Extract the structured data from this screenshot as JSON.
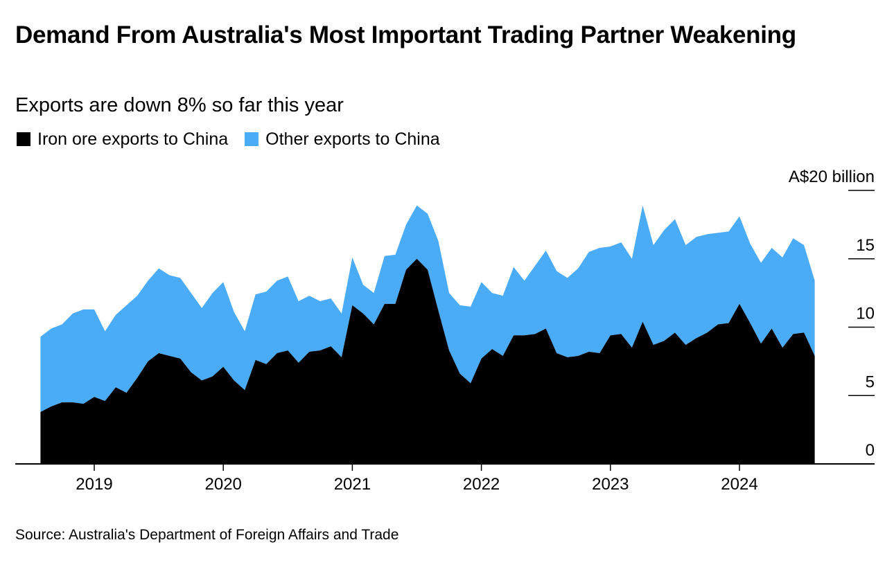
{
  "title": "Demand From Australia's Most Important Trading Partner Weakening",
  "subtitle": "Exports are down 8% so far this year",
  "source": "Source: Australia's Department of Foreign Affairs and Trade",
  "colors": {
    "iron_ore": "#000000",
    "other": "#4aabf7"
  },
  "chart_data": {
    "type": "area",
    "stacked": true,
    "title": "Demand From Australia's Most Important Trading Partner Weakening",
    "subtitle": "Exports are down 8% so far this year",
    "unit_label": "A$20 billion",
    "y_ticks": [
      "0",
      "5",
      "10",
      "15",
      "A$20 billion"
    ],
    "y_tick_values": [
      0,
      5,
      10,
      15,
      20
    ],
    "ylim": [
      0,
      20
    ],
    "x_ticks": [
      "2019",
      "2020",
      "2021",
      "2022",
      "2023",
      "2024"
    ],
    "x_tick_values": [
      "2019-01",
      "2020-01",
      "2021-01",
      "2022-01",
      "2023-01",
      "2024-01"
    ],
    "x_range": [
      "2018-07",
      "2024-07"
    ],
    "grid": false,
    "legend_position": "top-left",
    "x": [
      "2018-08",
      "2018-09",
      "2018-10",
      "2018-11",
      "2018-12",
      "2019-01",
      "2019-02",
      "2019-03",
      "2019-04",
      "2019-05",
      "2019-06",
      "2019-07",
      "2019-08",
      "2019-09",
      "2019-10",
      "2019-11",
      "2019-12",
      "2020-01",
      "2020-02",
      "2020-03",
      "2020-04",
      "2020-05",
      "2020-06",
      "2020-07",
      "2020-08",
      "2020-09",
      "2020-10",
      "2020-11",
      "2020-12",
      "2021-01",
      "2021-02",
      "2021-03",
      "2021-04",
      "2021-05",
      "2021-06",
      "2021-07",
      "2021-08",
      "2021-09",
      "2021-10",
      "2021-11",
      "2021-12",
      "2022-01",
      "2022-02",
      "2022-03",
      "2022-04",
      "2022-05",
      "2022-06",
      "2022-07",
      "2022-08",
      "2022-09",
      "2022-10",
      "2022-11",
      "2022-12",
      "2023-01",
      "2023-02",
      "2023-03",
      "2023-04",
      "2023-05",
      "2023-06",
      "2023-07",
      "2023-08",
      "2023-09",
      "2023-10",
      "2023-11",
      "2023-12",
      "2024-01",
      "2024-02",
      "2024-03",
      "2024-04",
      "2024-05",
      "2024-06",
      "2024-07",
      "2024-08"
    ],
    "series": [
      {
        "name": "Iron ore exports to China",
        "values": [
          3.8,
          4.2,
          4.5,
          4.5,
          4.4,
          4.9,
          4.6,
          5.6,
          5.2,
          6.3,
          7.5,
          8.1,
          7.9,
          7.7,
          6.7,
          6.1,
          6.4,
          7.1,
          6.1,
          5.4,
          7.6,
          7.3,
          8.1,
          8.3,
          7.4,
          8.2,
          8.3,
          8.6,
          7.8,
          11.6,
          11.0,
          10.2,
          11.7,
          11.7,
          14.2,
          15.0,
          14.2,
          11.2,
          8.3,
          6.6,
          5.9,
          7.7,
          8.4,
          7.9,
          9.4,
          9.4,
          9.5,
          9.9,
          8.1,
          7.8,
          7.9,
          8.2,
          8.1,
          9.4,
          9.5,
          8.5,
          10.4,
          8.7,
          9.0,
          9.6,
          8.7,
          9.2,
          9.6,
          10.2,
          10.3,
          11.7,
          10.3,
          8.8,
          9.9,
          8.5,
          9.5,
          9.6,
          7.9
        ]
      },
      {
        "name": "Other exports to China",
        "values": [
          5.5,
          5.7,
          5.7,
          6.5,
          6.9,
          6.4,
          5.1,
          5.3,
          6.4,
          6.0,
          5.9,
          6.2,
          5.9,
          5.9,
          5.8,
          5.3,
          6.1,
          6.2,
          5.0,
          4.3,
          4.8,
          5.3,
          5.3,
          5.4,
          4.5,
          4.1,
          3.6,
          3.5,
          3.2,
          3.5,
          2.1,
          2.3,
          3.5,
          3.6,
          3.3,
          3.9,
          4.1,
          5.1,
          4.2,
          5.0,
          5.6,
          5.6,
          4.1,
          4.4,
          5.0,
          4.0,
          5.0,
          5.7,
          6.0,
          5.8,
          6.4,
          7.3,
          7.7,
          6.5,
          6.7,
          6.5,
          8.5,
          7.3,
          8.1,
          8.3,
          7.3,
          7.4,
          7.2,
          6.7,
          6.7,
          6.4,
          5.8,
          5.9,
          5.9,
          6.6,
          7.0,
          6.4,
          5.5
        ]
      }
    ]
  }
}
